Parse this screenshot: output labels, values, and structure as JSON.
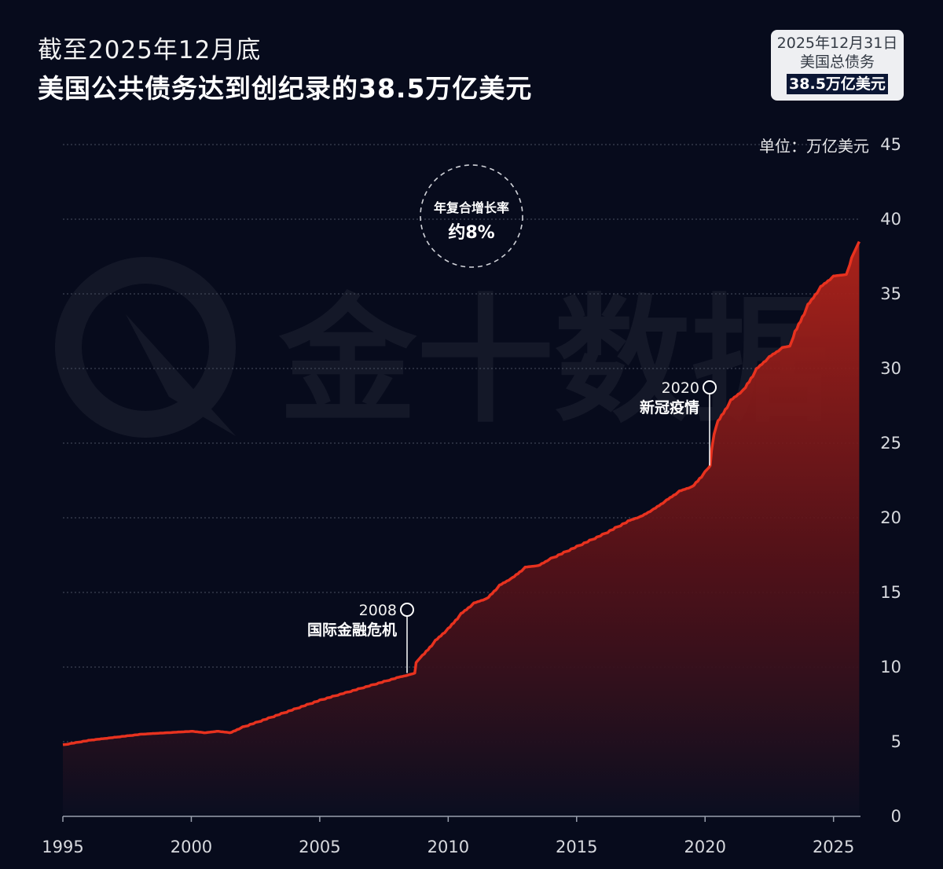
{
  "header": {
    "subtitle": "截至2025年12月底",
    "title": "美国公共债务达到创纪录的38.5万亿美元"
  },
  "info_card": {
    "line1": "2025年12月31日",
    "line2": "美国总债务",
    "value": "38.5万亿美元"
  },
  "watermark": {
    "brand": "金十数据"
  },
  "colors": {
    "background": "#070b1c",
    "line": "#e8321f",
    "area_top": "#b2231a",
    "area_bottom": "#0a0e20",
    "grid": "#4a4f60"
  },
  "chart_data": {
    "type": "area",
    "unit_label": "单位：万亿美元",
    "ylim": [
      0,
      45
    ],
    "yticks": [
      0,
      5,
      10,
      15,
      20,
      25,
      30,
      35,
      40,
      45
    ],
    "xlim": [
      1995,
      2026.05
    ],
    "xticks": [
      1995,
      2000,
      2005,
      2010,
      2015,
      2020,
      2025
    ],
    "grid": true,
    "y_axis_position": "right",
    "x": [
      1995,
      1996,
      1997,
      1998,
      1999,
      2000,
      2000.5,
      2001,
      2001.5,
      2002,
      2003,
      2004,
      2005,
      2006,
      2007,
      2008,
      2008.5,
      2008.7,
      2008.75,
      2009,
      2009.5,
      2010,
      2010.5,
      2011,
      2011.5,
      2012,
      2012.5,
      2013,
      2013.5,
      2014,
      2015,
      2016,
      2017,
      2017.5,
      2018,
      2018.5,
      2019,
      2019.5,
      2020.0,
      2020.2,
      2020.25,
      2020.35,
      2020.5,
      2021,
      2021.5,
      2022,
      2022.5,
      2023,
      2023.3,
      2023.5,
      2024,
      2024.5,
      2025,
      2025.5,
      2025.7,
      2026
    ],
    "values": [
      4.8,
      5.1,
      5.3,
      5.5,
      5.6,
      5.7,
      5.6,
      5.7,
      5.6,
      6.0,
      6.6,
      7.2,
      7.8,
      8.3,
      8.8,
      9.3,
      9.5,
      9.6,
      10.3,
      10.8,
      11.8,
      12.6,
      13.6,
      14.3,
      14.6,
      15.5,
      16.0,
      16.7,
      16.8,
      17.3,
      18.1,
      18.9,
      19.8,
      20.1,
      20.6,
      21.2,
      21.8,
      22.1,
      23.1,
      23.5,
      24.5,
      25.6,
      26.5,
      27.9,
      28.6,
      30.0,
      30.8,
      31.4,
      31.5,
      32.5,
      34.3,
      35.5,
      36.2,
      36.3,
      37.4,
      38.5
    ],
    "annotations": [
      {
        "x": 2008.7,
        "y": 9.6,
        "year": "2008",
        "label": "国际金融危机"
      },
      {
        "x": 2020.2,
        "y": 23.5,
        "year": "2020",
        "label": "新冠疫情"
      }
    ],
    "callout": {
      "title": "年复合增长率",
      "value": "约8%"
    }
  }
}
